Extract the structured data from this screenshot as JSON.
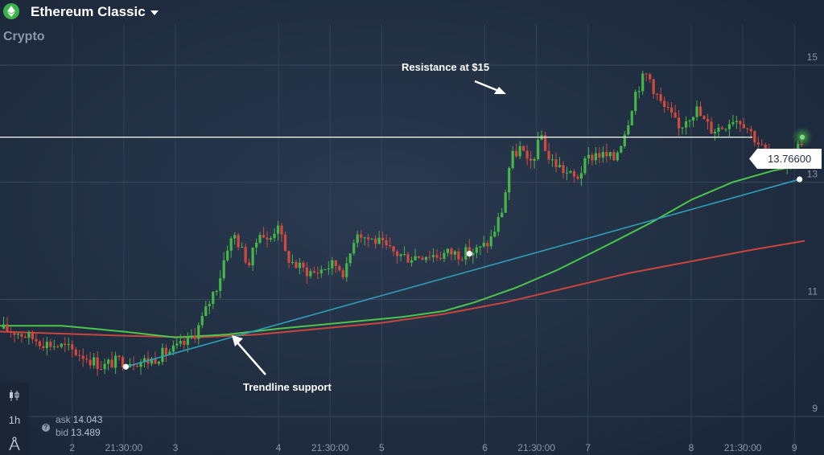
{
  "header": {
    "title": "Ethereum Classic",
    "subtitle": "Crypto",
    "asset_icon": "ethereum-diamond-icon",
    "accent": "#3cb34a"
  },
  "toolbar": {
    "chart_type_icon": "candlestick-icon",
    "timeframe": "1h",
    "draw_tool_icon": "drawing-compass-icon"
  },
  "quotes": {
    "ask_label": "ask",
    "ask_value": "14.043",
    "bid_label": "bid",
    "bid_value": "13.489",
    "help_icon": "question-icon"
  },
  "current_price": {
    "label": "13.76600",
    "value": 13.766
  },
  "annotations": {
    "resistance": "Resistance at $15",
    "trendline": "Trendline support"
  },
  "colors": {
    "bull": "#46b648",
    "bear": "#d2493f",
    "ma_fast": "#4cc54a",
    "ma_slow": "#c9453b",
    "trendline": "#2f9fb8",
    "grid": "#3a4860",
    "axis_text": "#8b96a6"
  },
  "chart_data": {
    "type": "candlestick",
    "title": "",
    "xlabel": "",
    "ylabel": "",
    "ylim": [
      8.7,
      15.7
    ],
    "xlim": [
      1.3,
      9.1
    ],
    "y_ticks": [
      9,
      11,
      13,
      15
    ],
    "x_ticks": [
      {
        "v": 2,
        "label": "2"
      },
      {
        "v": 2.5,
        "label": "21:30:00"
      },
      {
        "v": 3,
        "label": "3"
      },
      {
        "v": 4,
        "label": "4"
      },
      {
        "v": 4.5,
        "label": "21:30:00"
      },
      {
        "v": 5,
        "label": "5"
      },
      {
        "v": 6,
        "label": "6"
      },
      {
        "v": 6.5,
        "label": "21:30:00"
      },
      {
        "v": 7,
        "label": "7"
      },
      {
        "v": 8,
        "label": "8"
      },
      {
        "v": 8.5,
        "label": "21:30:00"
      },
      {
        "v": 9,
        "label": "9"
      }
    ],
    "grid": true,
    "price_anchors": [
      [
        1.3,
        10.5
      ],
      [
        1.45,
        10.45
      ],
      [
        1.6,
        10.35
      ],
      [
        1.75,
        10.25
      ],
      [
        1.9,
        10.2
      ],
      [
        2.1,
        10.05
      ],
      [
        2.3,
        9.85
      ],
      [
        2.35,
        9.9
      ],
      [
        2.45,
        9.95
      ],
      [
        2.6,
        9.95
      ],
      [
        2.75,
        9.95
      ],
      [
        2.85,
        10.05
      ],
      [
        3.0,
        10.15
      ],
      [
        3.1,
        10.25
      ],
      [
        3.2,
        10.45
      ],
      [
        3.27,
        10.7
      ],
      [
        3.35,
        11.05
      ],
      [
        3.42,
        11.3
      ],
      [
        3.5,
        11.9
      ],
      [
        3.58,
        12.1
      ],
      [
        3.65,
        11.8
      ],
      [
        3.72,
        11.6
      ],
      [
        3.82,
        12.2
      ],
      [
        3.9,
        11.95
      ],
      [
        4.0,
        12.35
      ],
      [
        4.05,
        11.8
      ],
      [
        4.15,
        11.6
      ],
      [
        4.25,
        11.5
      ],
      [
        4.35,
        11.45
      ],
      [
        4.45,
        11.55
      ],
      [
        4.55,
        11.6
      ],
      [
        4.65,
        11.45
      ],
      [
        4.75,
        12.2
      ],
      [
        4.85,
        12.05
      ],
      [
        4.95,
        12.0
      ],
      [
        5.05,
        11.85
      ],
      [
        5.15,
        11.78
      ],
      [
        5.25,
        11.72
      ],
      [
        5.35,
        11.75
      ],
      [
        5.45,
        11.78
      ],
      [
        5.55,
        11.75
      ],
      [
        5.65,
        11.8
      ],
      [
        5.75,
        11.78
      ],
      [
        5.85,
        11.8
      ],
      [
        5.95,
        11.85
      ],
      [
        6.05,
        12.0
      ],
      [
        6.12,
        12.3
      ],
      [
        6.18,
        12.6
      ],
      [
        6.22,
        13.1
      ],
      [
        6.25,
        13.4
      ],
      [
        6.3,
        13.5
      ],
      [
        6.35,
        13.6
      ],
      [
        6.42,
        13.25
      ],
      [
        6.5,
        13.55
      ],
      [
        6.55,
        13.8
      ],
      [
        6.62,
        13.4
      ],
      [
        6.7,
        13.3
      ],
      [
        6.8,
        13.15
      ],
      [
        6.88,
        13.05
      ],
      [
        6.95,
        13.25
      ],
      [
        7.0,
        13.4
      ],
      [
        7.08,
        13.5
      ],
      [
        7.15,
        13.45
      ],
      [
        7.25,
        13.4
      ],
      [
        7.32,
        13.7
      ],
      [
        7.38,
        14.0
      ],
      [
        7.45,
        14.5
      ],
      [
        7.52,
        14.75
      ],
      [
        7.58,
        14.85
      ],
      [
        7.65,
        14.55
      ],
      [
        7.72,
        14.3
      ],
      [
        7.8,
        14.15
      ],
      [
        7.88,
        13.9
      ],
      [
        7.95,
        14.1
      ],
      [
        8.05,
        14.25
      ],
      [
        8.12,
        14.05
      ],
      [
        8.2,
        13.9
      ],
      [
        8.3,
        13.95
      ],
      [
        8.4,
        14.1
      ],
      [
        8.5,
        14.05
      ],
      [
        8.6,
        13.8
      ],
      [
        8.7,
        13.55
      ],
      [
        8.78,
        13.3
      ],
      [
        8.85,
        13.35
      ],
      [
        8.9,
        13.28
      ],
      [
        8.95,
        13.4
      ],
      [
        9.02,
        13.55
      ],
      [
        9.08,
        13.75
      ],
      [
        9.1,
        13.77
      ]
    ],
    "moving_average_fast": [
      [
        1.3,
        10.55
      ],
      [
        1.9,
        10.55
      ],
      [
        2.5,
        10.45
      ],
      [
        3.0,
        10.35
      ],
      [
        3.5,
        10.4
      ],
      [
        4.0,
        10.5
      ],
      [
        4.6,
        10.6
      ],
      [
        5.2,
        10.7
      ],
      [
        5.6,
        10.8
      ],
      [
        5.9,
        10.95
      ],
      [
        6.3,
        11.2
      ],
      [
        6.7,
        11.5
      ],
      [
        7.1,
        11.85
      ],
      [
        7.6,
        12.3
      ],
      [
        8.0,
        12.7
      ],
      [
        8.4,
        13.0
      ],
      [
        8.8,
        13.2
      ],
      [
        9.1,
        13.3
      ]
    ],
    "moving_average_slow": [
      [
        1.3,
        10.45
      ],
      [
        2.5,
        10.38
      ],
      [
        3.2,
        10.35
      ],
      [
        3.8,
        10.4
      ],
      [
        4.4,
        10.5
      ],
      [
        5.0,
        10.6
      ],
      [
        5.6,
        10.75
      ],
      [
        6.2,
        10.95
      ],
      [
        6.8,
        11.2
      ],
      [
        7.4,
        11.45
      ],
      [
        8.0,
        11.65
      ],
      [
        8.6,
        11.85
      ],
      [
        9.1,
        12.0
      ]
    ],
    "trendline": [
      [
        2.52,
        9.85
      ],
      [
        9.05,
        13.05
      ]
    ],
    "trendline_points": [
      [
        2.52,
        9.85
      ],
      [
        5.85,
        11.78
      ],
      [
        9.05,
        13.05
      ]
    ]
  }
}
